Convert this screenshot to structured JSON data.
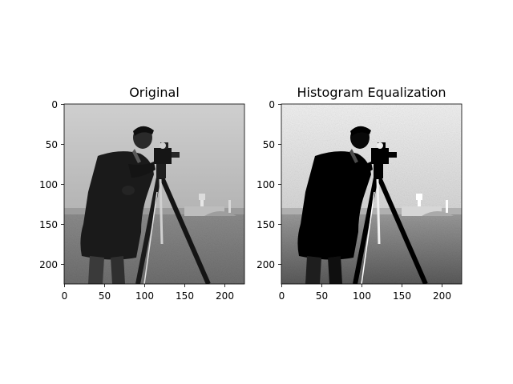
{
  "figure": {
    "background": "#ffffff",
    "panels": [
      {
        "title": "Original",
        "image_kind": "grayscale photograph: cameraman with camera on tripod, buildings in background",
        "x_range": [
          0,
          224
        ],
        "y_range": [
          224,
          0
        ],
        "x_ticks": [
          0,
          50,
          100,
          150,
          200
        ],
        "y_ticks": [
          0,
          50,
          100,
          150,
          200
        ],
        "contrast": "normal"
      },
      {
        "title": "Histogram Equalization",
        "image_kind": "histogram-equalized grayscale photograph: cameraman with camera on tripod",
        "x_range": [
          0,
          224
        ],
        "y_range": [
          224,
          0
        ],
        "x_ticks": [
          0,
          50,
          100,
          150,
          200
        ],
        "y_ticks": [
          0,
          50,
          100,
          150,
          200
        ],
        "contrast": "high"
      }
    ]
  }
}
